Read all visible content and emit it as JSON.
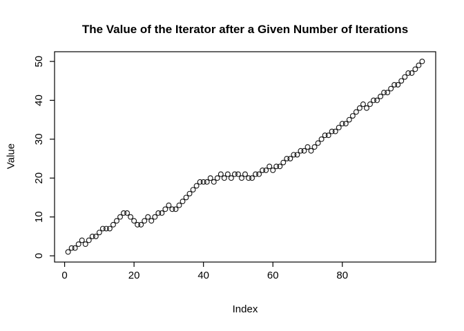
{
  "chart_data": {
    "type": "scatter",
    "title": "The Value of the Iterator after a Given Number of Iterations",
    "xlabel": "Index",
    "ylabel": "Value",
    "point_style": "open-circle",
    "point_color": "#111111",
    "axis_color": "#000000",
    "grid": false,
    "legend": null,
    "x_ticks": [
      0,
      20,
      40,
      60,
      80
    ],
    "y_ticks": [
      0,
      10,
      20,
      30,
      40,
      50
    ],
    "xlim": [
      -2.9,
      106.9
    ],
    "ylim": [
      -1.6,
      52.5
    ],
    "x": [
      1,
      2,
      3,
      4,
      5,
      6,
      7,
      8,
      9,
      10,
      11,
      12,
      13,
      14,
      15,
      16,
      17,
      18,
      19,
      20,
      21,
      22,
      23,
      24,
      25,
      26,
      27,
      28,
      29,
      30,
      31,
      32,
      33,
      34,
      35,
      36,
      37,
      38,
      39,
      40,
      41,
      42,
      43,
      44,
      45,
      46,
      47,
      48,
      49,
      50,
      51,
      52,
      53,
      54,
      55,
      56,
      57,
      58,
      59,
      60,
      61,
      62,
      63,
      64,
      65,
      66,
      67,
      68,
      69,
      70,
      71,
      72,
      73,
      74,
      75,
      76,
      77,
      78,
      79,
      80,
      81,
      82,
      83,
      84,
      85,
      86,
      87,
      88,
      89,
      90,
      91,
      92,
      93,
      94,
      95,
      96,
      97,
      98,
      99,
      100,
      101,
      102,
      103
    ],
    "values": [
      1,
      2,
      2,
      3,
      4,
      3,
      4,
      5,
      5,
      6,
      7,
      7,
      7,
      8,
      9,
      10,
      11,
      11,
      10,
      9,
      8,
      8,
      9,
      10,
      9,
      10,
      11,
      11,
      12,
      13,
      12,
      12,
      13,
      14,
      15,
      16,
      17,
      18,
      19,
      19,
      19,
      20,
      19,
      20,
      21,
      20,
      21,
      20,
      21,
      21,
      20,
      21,
      20,
      20,
      21,
      21,
      22,
      22,
      23,
      22,
      23,
      23,
      24,
      25,
      25,
      26,
      26,
      27,
      27,
      28,
      27,
      28,
      29,
      30,
      31,
      31,
      32,
      32,
      33,
      34,
      34,
      35,
      36,
      37,
      38,
      39,
      38,
      39,
      40,
      40,
      41,
      42,
      42,
      43,
      44,
      44,
      45,
      46,
      47,
      47,
      48,
      49,
      50
    ]
  }
}
